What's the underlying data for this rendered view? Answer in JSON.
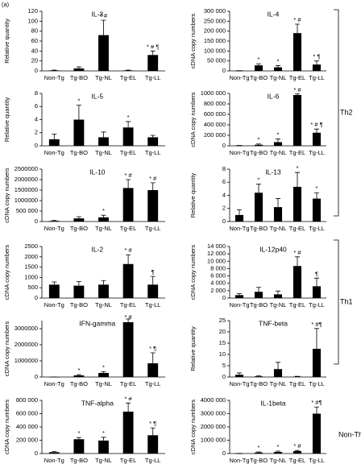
{
  "panel_label": "(a)",
  "groups": [
    "Th2",
    "Th1",
    "Non-Th"
  ],
  "chart_data": [
    {
      "type": "bar",
      "title": "IL-3",
      "ylabel": "Relative quantity",
      "color": "#000000",
      "categories": [
        "Non-Tg",
        "Tg-BO",
        "Tg-NL",
        "Tg-EL",
        "Tg-LL"
      ],
      "values": [
        1,
        5,
        72,
        1,
        32
      ],
      "errors": [
        0.5,
        3,
        30,
        0.5,
        8
      ],
      "annotations": [
        null,
        null,
        "* #",
        null,
        "* # ¶"
      ],
      "ylim": [
        0,
        120
      ],
      "yticks": [
        0,
        20,
        40,
        60,
        80,
        100,
        120
      ]
    },
    {
      "type": "bar",
      "title": "IL-4",
      "ylabel": "cDNA copy numbers",
      "color": "#000000",
      "categories": [
        "Non-Tg",
        "Tg-BO",
        "Tg-NL",
        "Tg-EL",
        "Tg-LL"
      ],
      "values": [
        1000,
        28000,
        18000,
        190000,
        32000
      ],
      "errors": [
        500,
        8000,
        8000,
        45000,
        18000
      ],
      "annotations": [
        null,
        "*",
        "*",
        "* #",
        "* ¶"
      ],
      "ylim": [
        0,
        300000
      ],
      "yticks": [
        0,
        {
          "value": 50000,
          "label": "50 000"
        },
        {
          "value": 100000,
          "label": "100 000"
        },
        {
          "value": 150000,
          "label": "150 000"
        },
        {
          "value": 200000,
          "label": "200 000"
        },
        {
          "value": 250000,
          "label": "250 000"
        },
        {
          "value": 300000,
          "label": "300 000"
        }
      ]
    },
    {
      "type": "bar",
      "title": "IL-5",
      "ylabel": "Relative quantity",
      "color": "#000000",
      "categories": [
        "Non-Tg",
        "Tg-BO",
        "Tg-NL",
        "Tg-EL",
        "Tg-LL"
      ],
      "values": [
        1,
        4,
        1.3,
        2.8,
        1.3
      ],
      "errors": [
        0.8,
        2.2,
        0.8,
        0.9,
        0.3
      ],
      "annotations": [
        null,
        "*",
        null,
        "*",
        null
      ],
      "ylim": [
        0,
        8
      ],
      "yticks": [
        0,
        2,
        4,
        6,
        8
      ]
    },
    {
      "type": "bar",
      "title": "IL-6",
      "ylabel": "cDNA copy numbers",
      "color": "#000000",
      "categories": [
        "Non-Tg",
        "Tg-BO",
        "Tg-NL",
        "Tg-EL",
        "Tg-LL"
      ],
      "values": [
        5000,
        20000,
        70000,
        970000,
        250000
      ],
      "errors": [
        3000,
        15000,
        60000,
        20000,
        70000
      ],
      "annotations": [
        null,
        "*",
        "*",
        "* #",
        "* # ¶"
      ],
      "ylim": [
        0,
        1000000
      ],
      "yticks": [
        0,
        {
          "value": 200000,
          "label": "200 000"
        },
        {
          "value": 400000,
          "label": "400 000"
        },
        {
          "value": 600000,
          "label": "600 000"
        },
        {
          "value": 800000,
          "label": "800 000"
        },
        {
          "value": 1000000,
          "label": "1000 000"
        }
      ]
    },
    {
      "type": "bar",
      "title": "IL-10",
      "ylabel": "cDNA copy numbers",
      "color": "#000000",
      "categories": [
        "Non-Tg",
        "Tg-BO",
        "Tg-NL",
        "Tg-EL",
        "Tg-LL"
      ],
      "values": [
        30000,
        150000,
        200000,
        1600000,
        1500000
      ],
      "errors": [
        20000,
        80000,
        100000,
        400000,
        350000
      ],
      "annotations": [
        null,
        null,
        "*",
        "* #",
        "* #"
      ],
      "ylim": [
        0,
        2500000
      ],
      "yticks": [
        0,
        {
          "value": 500000,
          "label": "500 000"
        },
        1000000,
        1500000,
        2000000,
        2500000
      ]
    },
    {
      "type": "bar",
      "title": "IL-13",
      "ylabel": "Relative quantity",
      "color": "#000000",
      "categories": [
        "Non-Tg",
        "Tg-BO",
        "Tg-NL",
        "Tg-EL",
        "Tg-LL"
      ],
      "values": [
        1,
        4.4,
        2.2,
        5.3,
        3.5
      ],
      "errors": [
        0.8,
        1.3,
        1.3,
        2.2,
        0.9
      ],
      "annotations": [
        null,
        "*",
        null,
        "*",
        "*"
      ],
      "ylim": [
        0,
        8
      ],
      "yticks": [
        0,
        2,
        4,
        6,
        8
      ]
    },
    {
      "type": "bar",
      "title": "IL-2",
      "ylabel": "cDNA copy numbers",
      "color": "#000000",
      "categories": [
        "Non-Tg",
        "Tg-BO",
        "Tg-NL",
        "Tg-EL",
        "Tg-LL"
      ],
      "values": [
        650,
        600,
        650,
        1650,
        650
      ],
      "errors": [
        130,
        200,
        200,
        450,
        400
      ],
      "annotations": [
        null,
        null,
        null,
        "* #",
        "¶"
      ],
      "ylim": [
        0,
        2500
      ],
      "yticks": [
        0,
        500,
        1000,
        1500,
        2000,
        2500
      ]
    },
    {
      "type": "bar",
      "title": "IL-12p40",
      "ylabel": "cDNA copy numbers",
      "color": "#000000",
      "categories": [
        "Non-Tg",
        "Tg-BO",
        "Tg-NL",
        "Tg-EL",
        "Tg-LL"
      ],
      "values": [
        800,
        1700,
        1000,
        8700,
        3200
      ],
      "errors": [
        400,
        1200,
        900,
        2500,
        2200
      ],
      "annotations": [
        null,
        null,
        null,
        "* #",
        "¶"
      ],
      "ylim": [
        0,
        14000
      ],
      "yticks": [
        0,
        {
          "value": 2000,
          "label": "2 000"
        },
        {
          "value": 4000,
          "label": "4 000"
        },
        {
          "value": 6000,
          "label": "6 000"
        },
        {
          "value": 8000,
          "label": "8 000"
        },
        {
          "value": 10000,
          "label": "10 000"
        },
        {
          "value": 12000,
          "label": "12 000"
        },
        {
          "value": 14000,
          "label": "14 000"
        }
      ]
    },
    {
      "type": "bar",
      "title": "IFN-gamma",
      "ylabel": "cDNA copy numbers",
      "color": "#000000",
      "categories": [
        "Non-Tg",
        "Tg-BO",
        "Tg-NL",
        "Tg-EL",
        "Tg-LL"
      ],
      "values": [
        5000,
        100000,
        250000,
        3400000,
        850000
      ],
      "errors": [
        3000,
        50000,
        80000,
        200000,
        650000
      ],
      "annotations": [
        null,
        "*",
        "*",
        "* #",
        "* ¶"
      ],
      "ylim": [
        0,
        3500000
      ],
      "yticks": [
        0,
        1000000,
        2000000,
        3000000
      ]
    },
    {
      "type": "bar",
      "title": "TNF-beta",
      "ylabel": "Relative quantity",
      "color": "#000000",
      "categories": [
        "Non-Tg",
        "Tg-BO",
        "Tg-NL",
        "Tg-EL",
        "Tg-LL"
      ],
      "values": [
        1,
        0.3,
        3.5,
        0.2,
        12.5
      ],
      "errors": [
        0.8,
        0.2,
        3,
        0.1,
        9
      ],
      "annotations": [
        null,
        null,
        null,
        null,
        "* #¶"
      ],
      "ylim": [
        0,
        25
      ],
      "yticks": [
        0,
        5,
        10,
        15,
        20,
        25
      ]
    },
    {
      "type": "bar",
      "title": "TNF-alpha",
      "ylabel": "cDNA copy numbers",
      "color": "#000000",
      "categories": [
        "Non-Tg",
        "Tg-BO",
        "Tg-NL",
        "Tg-EL",
        "Tg-LL"
      ],
      "values": [
        20000,
        215000,
        195000,
        630000,
        275000
      ],
      "errors": [
        10000,
        25000,
        50000,
        130000,
        110000
      ],
      "annotations": [
        null,
        "*",
        "*",
        "* #",
        "* ¶"
      ],
      "ylim": [
        0,
        800000
      ],
      "yticks": [
        0,
        {
          "value": 200000,
          "label": "200 000"
        },
        {
          "value": 400000,
          "label": "400 000"
        },
        {
          "value": 600000,
          "label": "600 000"
        },
        {
          "value": 800000,
          "label": "800 000"
        }
      ]
    },
    {
      "type": "bar",
      "title": "IL-1beta",
      "ylabel": "cDNA copy numbers",
      "color": "#000000",
      "categories": [
        "Non-Tg",
        "Tg-BO",
        "Tg-NL",
        "Tg-EL",
        "Tg-LL"
      ],
      "values": [
        10000,
        80000,
        120000,
        180000,
        3000000
      ],
      "errors": [
        5000,
        40000,
        60000,
        50000,
        500000
      ],
      "annotations": [
        null,
        "*",
        "*",
        "* #",
        "* #¶"
      ],
      "ylim": [
        0,
        4000000
      ],
      "yticks": [
        0,
        {
          "value": 1000000,
          "label": "1000 000"
        },
        {
          "value": 2000000,
          "label": "2000 000"
        },
        {
          "value": 3000000,
          "label": "3000 000"
        },
        {
          "value": 4000000,
          "label": "4000 000"
        }
      ]
    }
  ]
}
